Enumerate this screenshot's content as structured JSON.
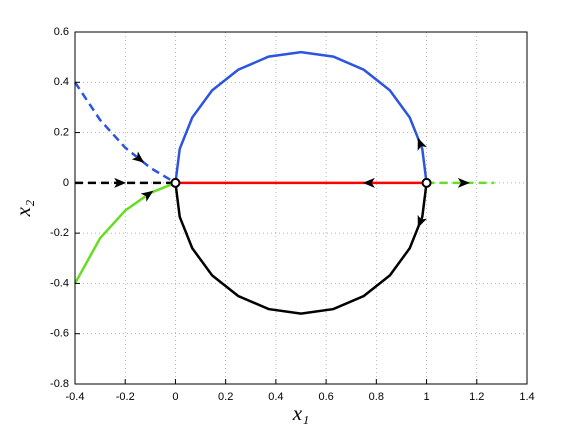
{
  "chart_data": {
    "type": "line",
    "xlabel": "x₁",
    "ylabel": "x₂",
    "xlim": [
      -0.4,
      1.4
    ],
    "xticks": [
      -0.4,
      -0.2,
      0,
      0.2,
      0.4,
      0.6,
      0.8,
      1,
      1.2,
      1.4
    ],
    "ylim": [
      -0.8,
      0.6
    ],
    "yticks": [
      -0.8,
      -0.6,
      -0.4,
      -0.2,
      0,
      0.2,
      0.4,
      0.6
    ],
    "grid": true,
    "series": [
      {
        "color": "#2b55e0",
        "dashed": false,
        "x": [
          1,
          0.983,
          0.933,
          0.854,
          0.75,
          0.629,
          0.5,
          0.371,
          0.25,
          0.146,
          0.067,
          0.017,
          0
        ],
        "y": [
          0,
          0.135,
          0.26,
          0.368,
          0.45,
          0.502,
          0.52,
          0.502,
          0.45,
          0.368,
          0.26,
          0.135,
          0
        ]
      },
      {
        "color": "#000000",
        "dashed": false,
        "x": [
          1,
          0.983,
          0.933,
          0.854,
          0.75,
          0.629,
          0.5,
          0.371,
          0.25,
          0.146,
          0.067,
          0.017,
          0
        ],
        "y": [
          0,
          -0.135,
          -0.26,
          -0.368,
          -0.45,
          -0.502,
          -0.52,
          -0.502,
          -0.45,
          -0.368,
          -0.26,
          -0.135,
          0
        ]
      },
      {
        "color": "#ff0000",
        "dashed": false,
        "x": [
          1,
          0
        ],
        "y": [
          0,
          0
        ]
      },
      {
        "color": "#66dd22",
        "dashed": true,
        "x": [
          1,
          1.27
        ],
        "y": [
          0,
          0
        ]
      },
      {
        "color": "#000000",
        "dashed": true,
        "x": [
          -0.4,
          0
        ],
        "y": [
          0,
          0
        ]
      },
      {
        "color": "#2b55e0",
        "dashed": true,
        "x": [
          -0.4,
          -0.3,
          -0.2,
          -0.1,
          0
        ],
        "y": [
          0.4,
          0.25,
          0.14,
          0.06,
          0
        ]
      },
      {
        "color": "#66dd22",
        "dashed": false,
        "x": [
          -0.4,
          -0.3,
          -0.2,
          -0.1,
          0
        ],
        "y": [
          -0.4,
          -0.22,
          -0.11,
          -0.04,
          0
        ]
      }
    ],
    "points": {
      "x": [
        0,
        1
      ],
      "y": [
        0,
        0
      ]
    }
  }
}
